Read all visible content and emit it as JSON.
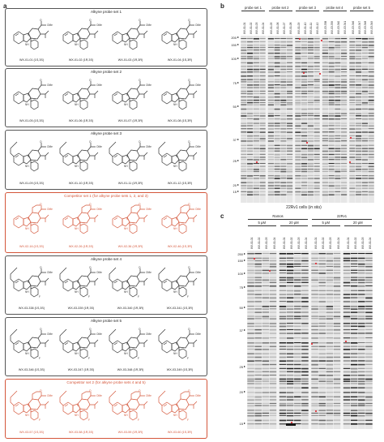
{
  "panel_a": {
    "letter": "a",
    "boxes": [
      {
        "title": "Alkyne probe set 1",
        "competitor": false,
        "compounds": [
          "WX-01-01 (1S,3S)",
          "WX-01-02 (1R,3S)",
          "WX-01-03 (1R,3R)",
          "WX-01-04 (1S,3R)"
        ]
      },
      {
        "title": "Alkyne probe set 2",
        "competitor": false,
        "compounds": [
          "WX-01-05 (1S,3S)",
          "WX-01-06 (1R,3S)",
          "WX-01-07 (1R,3R)",
          "WX-01-08 (1S,3R)"
        ]
      },
      {
        "title": "Alkyne probe set 3",
        "competitor": false,
        "compounds": [
          "WX-01-09 (1S,3S)",
          "WX-01-10 (1R,3S)",
          "WX-01-11 (1R,3R)",
          "WX-01-12 (1S,3R)"
        ]
      },
      {
        "title": "Competitor set 1 (for alkyne probe sets 1, 2, and 3)",
        "competitor": true,
        "compounds": [
          "WX-02-16 (1S,3S)",
          "WX-02-26 (1R,3S)",
          "WX-02-36 (1R,3R)",
          "WX-02-46 (1S,3R)"
        ]
      },
      {
        "title": "Alkyne probe set 4",
        "competitor": false,
        "compounds": [
          "WX-03-338 (1S,3S)",
          "WX-03-339 (1R,3S)",
          "WX-03-340 (1R,3R)",
          "WX-03-341 (1S,3R)"
        ]
      },
      {
        "title": "Alkyne probe set 5",
        "competitor": false,
        "compounds": [
          "WX-03-346 (1S,3S)",
          "WX-03-347 (1R,3S)",
          "WX-03-348 (1R,3R)",
          "WX-03-349 (1S,3R)"
        ]
      },
      {
        "title": "Competitor set 2 (for alkyne probe sets 4 and 5)",
        "competitor": true,
        "compounds": [
          "WX-03-57 (1S,3S)",
          "WX-03-58 (1R,3S)",
          "WX-03-59 (1R,3R)",
          "WX-03-60 (1S,3R)"
        ]
      }
    ],
    "atom_labels": {
      "ome": "OMe",
      "nh": "NH",
      "n": "N",
      "o": "O",
      "f": "F"
    }
  },
  "panel_b": {
    "letter": "b",
    "sets": [
      "probe set 1",
      "probe set 2",
      "probe set 3",
      "probe set 4",
      "probe set 5"
    ],
    "lanes": [
      "WX-01-01",
      "WX-01-02",
      "WX-01-03",
      "WX-01-04",
      "WX-01-05",
      "WX-01-06",
      "WX-01-07",
      "WX-01-08",
      "WX-01-09",
      "WX-01-10",
      "WX-01-11",
      "WX-01-12",
      "WX-03-338",
      "WX-03-339",
      "WX-03-340",
      "WX-03-341",
      "WX-03-346",
      "WX-03-347",
      "WX-03-348",
      "WX-03-349"
    ],
    "mw_markers": [
      "200",
      "150",
      "100",
      "75",
      "50",
      "37",
      "25",
      "20",
      "15"
    ],
    "caption_cell": "22Rv1 cells (",
    "caption_italic": "in situ",
    "caption_end": ")"
  },
  "panel_c": {
    "letter": "c",
    "cell_lines": [
      "Ramos",
      "22Rv1"
    ],
    "concentrations": [
      "5 μM",
      "20 μM",
      "5 μM",
      "20 μM"
    ],
    "lanes": [
      "WX-01-01",
      "WX-01-02",
      "WX-01-03",
      "WX-01-04",
      "WX-01-01",
      "WX-01-02",
      "WX-01-03",
      "WX-01-04",
      "WX-01-01",
      "WX-01-02",
      "WX-01-03",
      "WX-01-04",
      "WX-01-01",
      "WX-01-02",
      "WX-01-03",
      "WX-01-04"
    ],
    "mw_markers": [
      "250",
      "150",
      "100",
      "75",
      "50",
      "37",
      "25",
      "20",
      "15"
    ]
  },
  "colors": {
    "competitor": "#d4563a",
    "marker_star": "#e0323a",
    "box_border": "#555555"
  }
}
